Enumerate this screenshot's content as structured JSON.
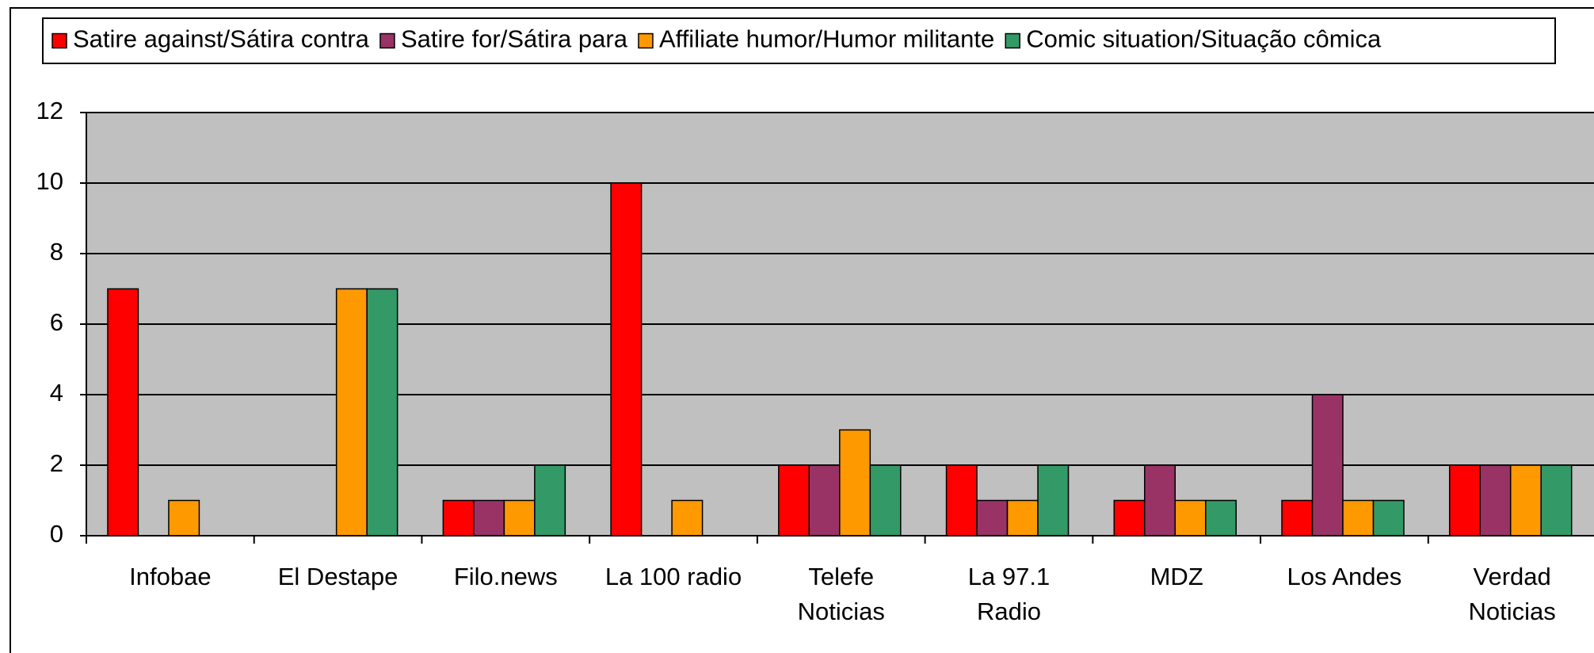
{
  "chart_data": {
    "type": "bar",
    "categories": [
      "Infobae",
      "El Destape",
      "Filo.news",
      "La 100 radio",
      "Telefe Noticias",
      "La 97.1 Radio",
      "MDZ",
      "Los Andes",
      "Verdad Noticias"
    ],
    "series": [
      {
        "name": "Satire against/Sátira contra",
        "color": "#ff0000",
        "values": [
          7,
          0,
          1,
          10,
          2,
          2,
          1,
          1,
          2
        ]
      },
      {
        "name": "Satire for/Sátira para",
        "color": "#993366",
        "values": [
          0,
          0,
          1,
          0,
          2,
          1,
          2,
          4,
          2
        ]
      },
      {
        "name": "Affiliate humor/Humor militante",
        "color": "#ff9900",
        "values": [
          1,
          7,
          1,
          1,
          3,
          1,
          1,
          1,
          2
        ]
      },
      {
        "name": "Comic situation/Situação cômica",
        "color": "#339966",
        "values": [
          0,
          7,
          2,
          0,
          2,
          2,
          1,
          1,
          2
        ]
      }
    ],
    "ylim": [
      0,
      12
    ],
    "yticks": [
      0,
      2,
      4,
      6,
      8,
      10,
      12
    ],
    "grid": true,
    "legend": "top",
    "plot_background": "#c0c0c0"
  }
}
